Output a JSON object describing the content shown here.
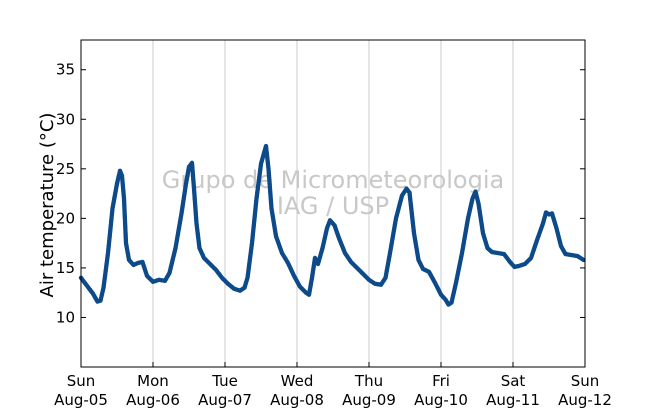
{
  "chart_data": {
    "type": "scatter",
    "title": "",
    "ylabel": "Air temperature (°C)",
    "xlabel": "",
    "ylim": [
      5,
      38
    ],
    "yticks": [
      10,
      15,
      20,
      25,
      30,
      35
    ],
    "xlim": [
      "2012-08-05 00:00",
      "2012-08-12 00:00"
    ],
    "xticks": [
      {
        "weekday": "Sun",
        "date": "Aug-05"
      },
      {
        "weekday": "Mon",
        "date": "Aug-06"
      },
      {
        "weekday": "Tue",
        "date": "Aug-07"
      },
      {
        "weekday": "Wed",
        "date": "Aug-08"
      },
      {
        "weekday": "Thu",
        "date": "Aug-09"
      },
      {
        "weekday": "Fri",
        "date": "Aug-10"
      },
      {
        "weekday": "Sat",
        "date": "Aug-11"
      },
      {
        "weekday": "Sun",
        "date": "Aug-12"
      }
    ],
    "grid": "vertical",
    "marker_color": "#0d4a8a",
    "watermark": [
      "Grupo de Micrometeorologia",
      "IAG / USP"
    ],
    "series": [
      {
        "points": [
          [
            "2012-08-05 00:00",
            14.0
          ],
          [
            "2012-08-05 02:00",
            13.2
          ],
          [
            "2012-08-05 04:00",
            12.4
          ],
          [
            "2012-08-05 05:30",
            11.6
          ],
          [
            "2012-08-05 06:30",
            11.7
          ],
          [
            "2012-08-05 07:30",
            13.0
          ],
          [
            "2012-08-05 09:00",
            16.5
          ],
          [
            "2012-08-05 10:30",
            21.0
          ],
          [
            "2012-08-05 12:00",
            23.5
          ],
          [
            "2012-08-05 13:00",
            24.8
          ],
          [
            "2012-08-05 13:40",
            24.3
          ],
          [
            "2012-08-05 14:20",
            22.0
          ],
          [
            "2012-08-05 15:00",
            17.5
          ],
          [
            "2012-08-05 16:00",
            15.8
          ],
          [
            "2012-08-05 17:30",
            15.3
          ],
          [
            "2012-08-05 19:00",
            15.5
          ],
          [
            "2012-08-05 20:30",
            15.6
          ],
          [
            "2012-08-05 22:00",
            14.2
          ],
          [
            "2012-08-06 00:00",
            13.6
          ],
          [
            "2012-08-06 02:00",
            13.8
          ],
          [
            "2012-08-06 04:00",
            13.7
          ],
          [
            "2012-08-06 05:30",
            14.5
          ],
          [
            "2012-08-06 07:30",
            17.0
          ],
          [
            "2012-08-06 09:30",
            20.5
          ],
          [
            "2012-08-06 11:00",
            23.5
          ],
          [
            "2012-08-06 12:00",
            25.2
          ],
          [
            "2012-08-06 13:00",
            25.6
          ],
          [
            "2012-08-06 13:40",
            23.0
          ],
          [
            "2012-08-06 14:30",
            19.5
          ],
          [
            "2012-08-06 15:30",
            17.0
          ],
          [
            "2012-08-06 17:00",
            16.0
          ],
          [
            "2012-08-06 19:00",
            15.4
          ],
          [
            "2012-08-06 21:00",
            14.8
          ],
          [
            "2012-08-06 23:00",
            14.0
          ],
          [
            "2012-08-07 01:00",
            13.4
          ],
          [
            "2012-08-07 03:00",
            12.9
          ],
          [
            "2012-08-07 05:00",
            12.7
          ],
          [
            "2012-08-07 06:30",
            13.0
          ],
          [
            "2012-08-07 07:30",
            14.0
          ],
          [
            "2012-08-07 09:00",
            17.5
          ],
          [
            "2012-08-07 10:30",
            22.0
          ],
          [
            "2012-08-07 12:00",
            25.5
          ],
          [
            "2012-08-07 13:00",
            26.6
          ],
          [
            "2012-08-07 13:40",
            27.3
          ],
          [
            "2012-08-07 14:30",
            25.0
          ],
          [
            "2012-08-07 15:30",
            21.0
          ],
          [
            "2012-08-07 17:00",
            18.2
          ],
          [
            "2012-08-07 19:00",
            16.5
          ],
          [
            "2012-08-07 21:00",
            15.5
          ],
          [
            "2012-08-07 23:00",
            14.2
          ],
          [
            "2012-08-08 01:00",
            13.1
          ],
          [
            "2012-08-08 03:00",
            12.5
          ],
          [
            "2012-08-08 04:00",
            12.3
          ],
          [
            "2012-08-08 05:00",
            14.0
          ],
          [
            "2012-08-08 06:00",
            16.0
          ],
          [
            "2012-08-08 07:00",
            15.4
          ],
          [
            "2012-08-08 08:30",
            17.0
          ],
          [
            "2012-08-08 10:00",
            19.0
          ],
          [
            "2012-08-08 11:00",
            19.8
          ],
          [
            "2012-08-08 12:30",
            19.3
          ],
          [
            "2012-08-08 14:00",
            18.0
          ],
          [
            "2012-08-08 16:00",
            16.5
          ],
          [
            "2012-08-08 18:00",
            15.6
          ],
          [
            "2012-08-08 20:00",
            15.0
          ],
          [
            "2012-08-08 22:00",
            14.4
          ],
          [
            "2012-08-09 00:00",
            13.8
          ],
          [
            "2012-08-09 02:00",
            13.4
          ],
          [
            "2012-08-09 04:00",
            13.3
          ],
          [
            "2012-08-09 05:30",
            14.0
          ],
          [
            "2012-08-09 07:00",
            16.5
          ],
          [
            "2012-08-09 09:00",
            20.0
          ],
          [
            "2012-08-09 11:00",
            22.3
          ],
          [
            "2012-08-09 12:30",
            23.0
          ],
          [
            "2012-08-09 13:30",
            22.6
          ],
          [
            "2012-08-09 15:00",
            18.5
          ],
          [
            "2012-08-09 16:30",
            15.8
          ],
          [
            "2012-08-09 18:00",
            14.9
          ],
          [
            "2012-08-09 20:00",
            14.6
          ],
          [
            "2012-08-09 22:00",
            13.5
          ],
          [
            "2012-08-10 00:00",
            12.3
          ],
          [
            "2012-08-10 01:30",
            11.8
          ],
          [
            "2012-08-10 02:30",
            11.3
          ],
          [
            "2012-08-10 03:30",
            11.5
          ],
          [
            "2012-08-10 05:00",
            13.5
          ],
          [
            "2012-08-10 07:00",
            16.5
          ],
          [
            "2012-08-10 09:00",
            20.0
          ],
          [
            "2012-08-10 10:30",
            22.0
          ],
          [
            "2012-08-10 11:30",
            22.7
          ],
          [
            "2012-08-10 12:30",
            21.5
          ],
          [
            "2012-08-10 14:00",
            18.5
          ],
          [
            "2012-08-10 15:30",
            17.0
          ],
          [
            "2012-08-10 17:00",
            16.6
          ],
          [
            "2012-08-10 19:00",
            16.5
          ],
          [
            "2012-08-10 21:00",
            16.4
          ],
          [
            "2012-08-10 23:00",
            15.6
          ],
          [
            "2012-08-11 00:30",
            15.1
          ],
          [
            "2012-08-11 02:00",
            15.2
          ],
          [
            "2012-08-11 04:00",
            15.4
          ],
          [
            "2012-08-11 06:00",
            16.0
          ],
          [
            "2012-08-11 08:00",
            17.8
          ],
          [
            "2012-08-11 10:00",
            19.5
          ],
          [
            "2012-08-11 11:00",
            20.6
          ],
          [
            "2012-08-11 12:00",
            20.4
          ],
          [
            "2012-08-11 13:00",
            20.5
          ],
          [
            "2012-08-11 14:30",
            19.0
          ],
          [
            "2012-08-11 16:00",
            17.2
          ],
          [
            "2012-08-11 17:30",
            16.4
          ],
          [
            "2012-08-11 19:30",
            16.3
          ],
          [
            "2012-08-11 21:30",
            16.2
          ],
          [
            "2012-08-11 23:30",
            15.8
          ]
        ]
      }
    ]
  }
}
